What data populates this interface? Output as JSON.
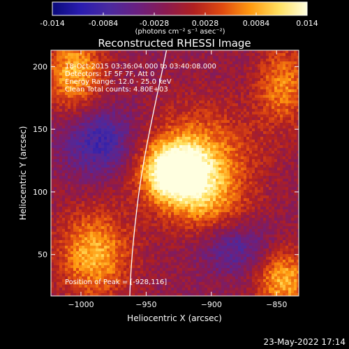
{
  "colors": {
    "background": "#000000",
    "text": "#ffffff",
    "limb": "#ffffff",
    "colormap": [
      "#0a0a7a",
      "#2a1cb0",
      "#4a2aa0",
      "#6a2080",
      "#8a1a50",
      "#b02020",
      "#e04a10",
      "#ff9a10",
      "#ffe060",
      "#ffffe0"
    ]
  },
  "colorbar": {
    "ticks": [
      "-0.014",
      "-0.0084",
      "-0.0028",
      "0.0028",
      "0.0084",
      "0.014"
    ],
    "unit_label": "(photons cm⁻² s⁻¹ asec⁻²)",
    "range": [
      -0.014,
      0.014
    ]
  },
  "chart_data": {
    "type": "heatmap",
    "title": "Reconstructed RHESSI Image",
    "xlabel": "Heliocentric X (arcsec)",
    "ylabel": "Heliocentric Y (arcsec)",
    "xlim": [
      -1023,
      -833
    ],
    "ylim": [
      17,
      213
    ],
    "xticks": [
      -1000,
      -950,
      -900,
      -850
    ],
    "yticks": [
      50,
      100,
      150,
      200
    ],
    "xtick_labels": [
      "−1000",
      "−950",
      "−900",
      "−850"
    ],
    "ytick_labels": [
      "50",
      "100",
      "150",
      "200"
    ],
    "annotations": [
      "18-Oct-2015 03:36:04.000 to 03:40:08.000",
      "Detectors: 1F 5F 7F, Att 0",
      "Energy Range: 12.0 - 25.0 keV",
      "Clean    Total counts: 4.80E+03"
    ],
    "peak_label": "Position of Peak = [-928,116]",
    "peak": [
      -928,
      116
    ],
    "grid": false,
    "sources": [
      {
        "x": -928,
        "y": 116,
        "sx": 18,
        "sy": 16,
        "amp": 0.016
      },
      {
        "x": -908,
        "y": 128,
        "sx": 30,
        "sy": 28,
        "amp": 0.008
      },
      {
        "x": -905,
        "y": 90,
        "sx": 22,
        "sy": 18,
        "amp": 0.006
      },
      {
        "x": -1005,
        "y": 195,
        "sx": 16,
        "sy": 22,
        "amp": 0.01
      },
      {
        "x": -845,
        "y": 185,
        "sx": 14,
        "sy": 22,
        "amp": 0.008
      },
      {
        "x": -990,
        "y": 50,
        "sx": 20,
        "sy": 25,
        "amp": 0.01
      },
      {
        "x": -845,
        "y": 30,
        "sx": 15,
        "sy": 18,
        "amp": 0.01
      },
      {
        "x": -880,
        "y": 55,
        "sx": 20,
        "sy": 15,
        "amp": -0.006
      },
      {
        "x": -985,
        "y": 140,
        "sx": 20,
        "sy": 20,
        "amp": -0.008
      }
    ]
  },
  "footer": {
    "timestamp": "23-May-2022 17:14"
  }
}
